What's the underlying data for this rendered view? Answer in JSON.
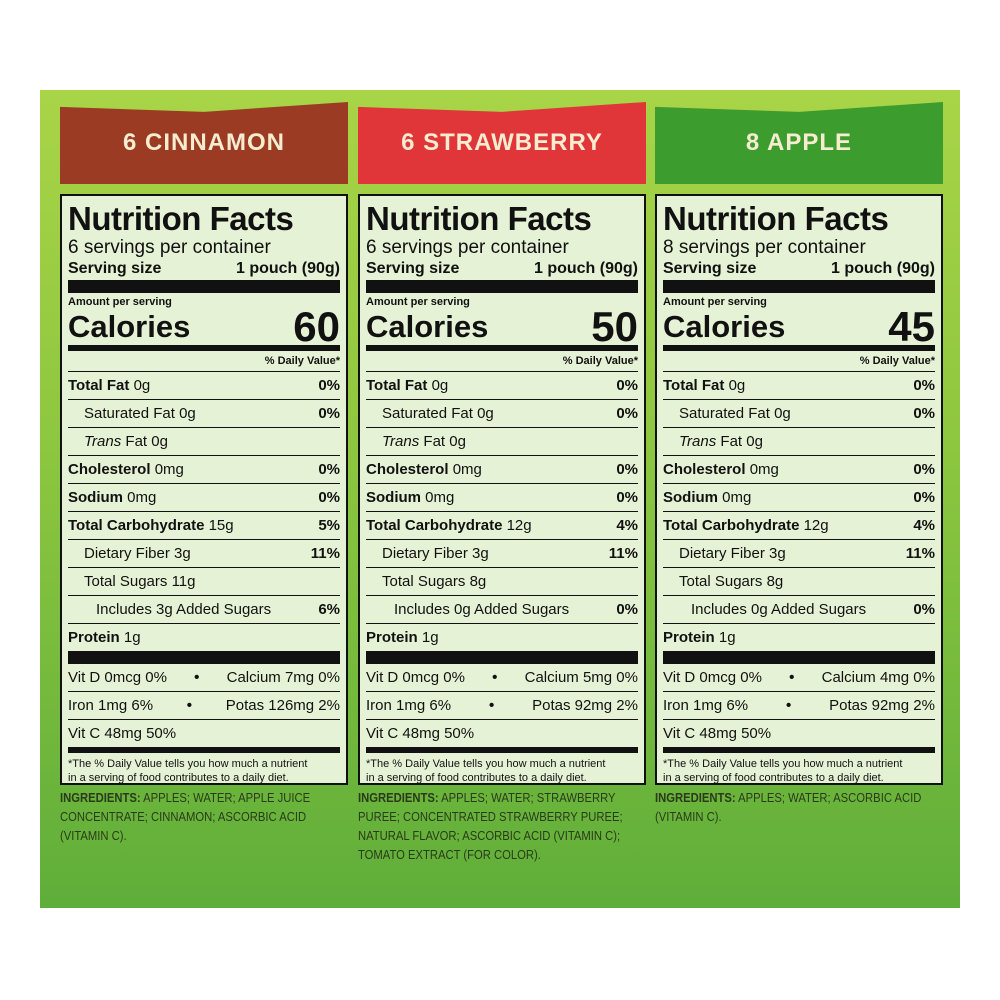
{
  "panels": [
    {
      "banner": "6 CINNAMON",
      "title": "Nutrition Facts",
      "servings": "6 servings per container",
      "serving_size_label": "Serving size",
      "serving_size": "1 pouch (90g)",
      "amount_per_serving": "Amount per serving",
      "calories_label": "Calories",
      "calories": 60,
      "daily_value_header": "% Daily Value*",
      "nutrients": [
        {
          "label": "Total Fat",
          "amount": "0g",
          "dv": "0%"
        },
        {
          "label": "Saturated Fat",
          "amount": "0g",
          "dv": "0%"
        },
        {
          "label": "Trans",
          "amount": "Fat 0g"
        },
        {
          "label": "Cholesterol",
          "amount": "0mg",
          "dv": "0%"
        },
        {
          "label": "Sodium",
          "amount": "0mg",
          "dv": "0%"
        },
        {
          "label": "Total Carbohydrate",
          "amount": "15g",
          "dv": "5%"
        },
        {
          "label": "Dietary Fiber",
          "amount": "3g",
          "dv": "11%"
        },
        {
          "label": "Total Sugars",
          "amount": "11g"
        },
        {
          "label": "Includes 3g Added Sugars",
          "dv": "6%"
        },
        {
          "label": "Protein",
          "amount": "1g"
        }
      ],
      "vitamins": [
        [
          "Vit D 0mcg 0%",
          "Calcium 7mg 0%"
        ],
        [
          "Iron 1mg 6%",
          "Potas 126mg 2%"
        ],
        [
          "Vit C 48mg 50%"
        ]
      ],
      "footnote": [
        "*The % Daily Value tells you how much a nutrient",
        "in a serving of food contributes to a daily diet."
      ],
      "ingredients_label": "INGREDIENTS:",
      "ingredients": "APPLES; WATER; APPLE JUICE CONCENTRATE; CINNAMON; ASCORBIC ACID (VITAMIN C)."
    },
    {
      "banner": "6 STRAWBERRY",
      "title": "Nutrition Facts",
      "servings": "6 servings per container",
      "serving_size_label": "Serving size",
      "serving_size": "1 pouch (90g)",
      "amount_per_serving": "Amount per serving",
      "calories_label": "Calories",
      "calories": 50,
      "daily_value_header": "% Daily Value*",
      "nutrients": [
        {
          "label": "Total Fat",
          "amount": "0g",
          "dv": "0%"
        },
        {
          "label": "Saturated Fat",
          "amount": "0g",
          "dv": "0%"
        },
        {
          "label": "Trans",
          "amount": "Fat 0g"
        },
        {
          "label": "Cholesterol",
          "amount": "0mg",
          "dv": "0%"
        },
        {
          "label": "Sodium",
          "amount": "0mg",
          "dv": "0%"
        },
        {
          "label": "Total Carbohydrate",
          "amount": "12g",
          "dv": "4%"
        },
        {
          "label": "Dietary Fiber",
          "amount": "3g",
          "dv": "11%"
        },
        {
          "label": "Total Sugars",
          "amount": "8g"
        },
        {
          "label": "Includes 0g Added Sugars",
          "dv": "0%"
        },
        {
          "label": "Protein",
          "amount": "1g"
        }
      ],
      "vitamins": [
        [
          "Vit D 0mcg 0%",
          "Calcium 5mg 0%"
        ],
        [
          "Iron 1mg 6%",
          "Potas 92mg 2%"
        ],
        [
          "Vit C 48mg 50%"
        ]
      ],
      "footnote": [
        "*The % Daily Value tells you how much a nutrient",
        "in a serving of food contributes to a daily diet."
      ],
      "ingredients_label": "INGREDIENTS:",
      "ingredients": "APPLES; WATER; STRAWBERRY PUREE; CONCENTRATED STRAWBERRY PUREE; NATURAL FLAVOR; ASCORBIC ACID (VITAMIN C); TOMATO EXTRACT (FOR COLOR)."
    },
    {
      "banner": "8 APPLE",
      "title": "Nutrition Facts",
      "servings": "8 servings per container",
      "serving_size_label": "Serving size",
      "serving_size": "1 pouch (90g)",
      "amount_per_serving": "Amount per serving",
      "calories_label": "Calories",
      "calories": 45,
      "daily_value_header": "% Daily Value*",
      "nutrients": [
        {
          "label": "Total Fat",
          "amount": "0g",
          "dv": "0%"
        },
        {
          "label": "Saturated Fat",
          "amount": "0g",
          "dv": "0%"
        },
        {
          "label": "Trans",
          "amount": "Fat 0g"
        },
        {
          "label": "Cholesterol",
          "amount": "0mg",
          "dv": "0%"
        },
        {
          "label": "Sodium",
          "amount": "0mg",
          "dv": "0%"
        },
        {
          "label": "Total Carbohydrate",
          "amount": "12g",
          "dv": "4%"
        },
        {
          "label": "Dietary Fiber",
          "amount": "3g",
          "dv": "11%"
        },
        {
          "label": "Total Sugars",
          "amount": "8g"
        },
        {
          "label": "Includes 0g Added Sugars",
          "dv": "0%"
        },
        {
          "label": "Protein",
          "amount": "1g"
        }
      ],
      "vitamins": [
        [
          "Vit D 0mcg 0%",
          "Calcium 4mg 0%"
        ],
        [
          "Iron 1mg 6%",
          "Potas 92mg 2%"
        ],
        [
          "Vit C 48mg 50%"
        ]
      ],
      "footnote": [
        "*The % Daily Value tells you how much a nutrient",
        "in a serving of food contributes to a daily diet."
      ],
      "ingredients_label": "INGREDIENTS:",
      "ingredients": "APPLES; WATER; ASCORBIC ACID (VITAMIN C)."
    }
  ]
}
